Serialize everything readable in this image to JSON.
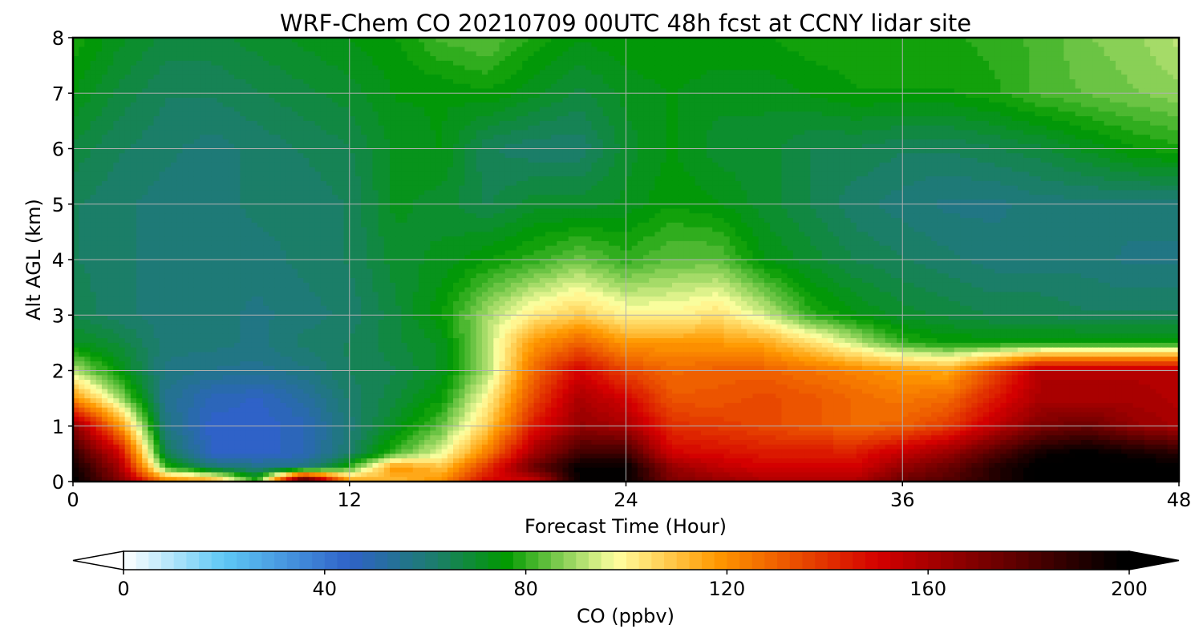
{
  "chart_data": {
    "type": "heatmap",
    "title": "WRF-Chem CO  20210709 00UTC 48h fcst at CCNY lidar site",
    "xlabel": "Forecast Time (Hour)",
    "ylabel": "Alt AGL (km)",
    "xlim": [
      0,
      48
    ],
    "ylim": [
      0,
      8
    ],
    "xticks": [
      0,
      12,
      24,
      36,
      48
    ],
    "yticks": [
      0,
      1,
      2,
      3,
      4,
      5,
      6,
      7,
      8
    ],
    "grid": true,
    "colorbar": {
      "label": "CO  (ppbv)",
      "range": [
        0,
        200
      ],
      "ticks": [
        0,
        40,
        80,
        120,
        160,
        200
      ],
      "extend": "both",
      "orientation": "horizontal",
      "colors": [
        {
          "v": 0,
          "c": "#ffffff"
        },
        {
          "v": 20,
          "c": "#5ec8f5"
        },
        {
          "v": 45,
          "c": "#2f62c8"
        },
        {
          "v": 62,
          "c": "#1c7d6c"
        },
        {
          "v": 76,
          "c": "#009a00"
        },
        {
          "v": 88,
          "c": "#8fd25a"
        },
        {
          "v": 98,
          "c": "#ffffa0"
        },
        {
          "v": 118,
          "c": "#ff9900"
        },
        {
          "v": 150,
          "c": "#d40000"
        },
        {
          "v": 176,
          "c": "#640000"
        },
        {
          "v": 198,
          "c": "#000000"
        }
      ]
    },
    "z_units": "ppbv",
    "x": [
      0,
      2,
      4,
      6,
      8,
      10,
      12,
      14,
      16,
      18,
      20,
      22,
      24,
      26,
      28,
      30,
      32,
      34,
      36,
      38,
      40,
      42,
      44,
      46,
      48
    ],
    "y": [
      0,
      0.25,
      0.5,
      1,
      1.5,
      2,
      2.5,
      3,
      4,
      5,
      6,
      7,
      8
    ],
    "z": [
      [
        200,
        170,
        125,
        120,
        80,
        200,
        120,
        110,
        120,
        150,
        150,
        198,
        198,
        170,
        165,
        160,
        160,
        160,
        175,
        180,
        190,
        200,
        200,
        200,
        200
      ],
      [
        196,
        162,
        82,
        62,
        58,
        58,
        80,
        120,
        110,
        140,
        175,
        198,
        198,
        165,
        155,
        150,
        150,
        150,
        165,
        175,
        190,
        200,
        200,
        200,
        200
      ],
      [
        188,
        152,
        66,
        46,
        44,
        48,
        62,
        82,
        96,
        125,
        162,
        185,
        185,
        150,
        148,
        145,
        145,
        145,
        155,
        165,
        180,
        195,
        200,
        195,
        190
      ],
      [
        168,
        120,
        58,
        45,
        44,
        48,
        60,
        72,
        84,
        108,
        145,
        165,
        160,
        140,
        138,
        135,
        132,
        128,
        130,
        138,
        155,
        170,
        175,
        165,
        160
      ],
      [
        120,
        90,
        56,
        48,
        46,
        52,
        62,
        68,
        76,
        100,
        135,
        160,
        150,
        132,
        132,
        135,
        132,
        128,
        125,
        128,
        145,
        160,
        160,
        160,
        158
      ],
      [
        92,
        74,
        58,
        56,
        55,
        58,
        64,
        66,
        72,
        90,
        128,
        150,
        135,
        128,
        130,
        130,
        126,
        122,
        118,
        115,
        135,
        158,
        158,
        158,
        158
      ],
      [
        72,
        68,
        60,
        60,
        58,
        62,
        64,
        68,
        72,
        92,
        118,
        130,
        118,
        118,
        118,
        115,
        105,
        92,
        80,
        76,
        76,
        76,
        76,
        76,
        76
      ],
      [
        66,
        62,
        60,
        60,
        58,
        60,
        62,
        68,
        76,
        90,
        102,
        108,
        100,
        100,
        104,
        94,
        80,
        74,
        70,
        68,
        66,
        66,
        64,
        64,
        64
      ],
      [
        64,
        62,
        60,
        60,
        60,
        62,
        64,
        70,
        72,
        76,
        80,
        85,
        80,
        84,
        84,
        74,
        70,
        66,
        64,
        62,
        60,
        60,
        60,
        58,
        58
      ],
      [
        64,
        62,
        60,
        60,
        62,
        62,
        64,
        72,
        70,
        66,
        70,
        70,
        72,
        76,
        74,
        70,
        66,
        62,
        60,
        58,
        58,
        60,
        60,
        60,
        60
      ],
      [
        68,
        64,
        62,
        60,
        62,
        64,
        66,
        72,
        74,
        64,
        62,
        62,
        70,
        74,
        70,
        70,
        66,
        66,
        64,
        64,
        66,
        68,
        72,
        76,
        78
      ],
      [
        74,
        68,
        64,
        64,
        66,
        68,
        70,
        74,
        74,
        76,
        72,
        68,
        72,
        74,
        72,
        72,
        74,
        76,
        76,
        76,
        78,
        82,
        84,
        86,
        88
      ],
      [
        78,
        72,
        68,
        68,
        70,
        72,
        74,
        76,
        82,
        84,
        78,
        74,
        76,
        76,
        76,
        76,
        78,
        78,
        78,
        78,
        80,
        82,
        86,
        88,
        92
      ]
    ]
  }
}
